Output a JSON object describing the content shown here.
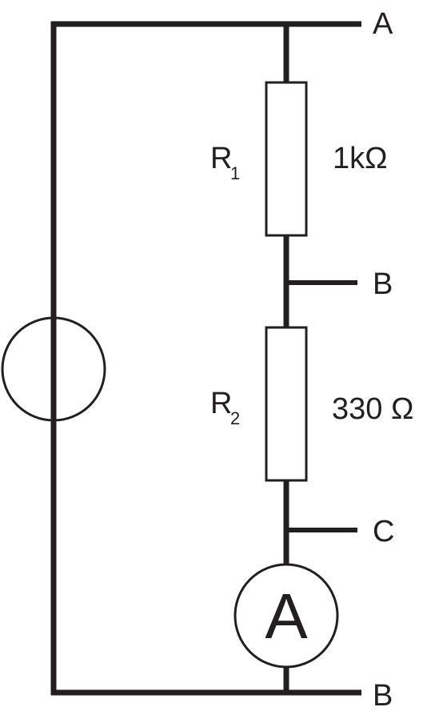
{
  "terminals": {
    "top": "A",
    "middle": "B",
    "lower": "C",
    "bottom": "B"
  },
  "resistors": [
    {
      "name": "R",
      "subscript": "1",
      "value": "1kΩ"
    },
    {
      "name": "R",
      "subscript": "2",
      "value": "330 Ω"
    }
  ],
  "ammeter": {
    "symbol": "A"
  },
  "colors": {
    "stroke": "#231f20",
    "background": "#ffffff"
  }
}
